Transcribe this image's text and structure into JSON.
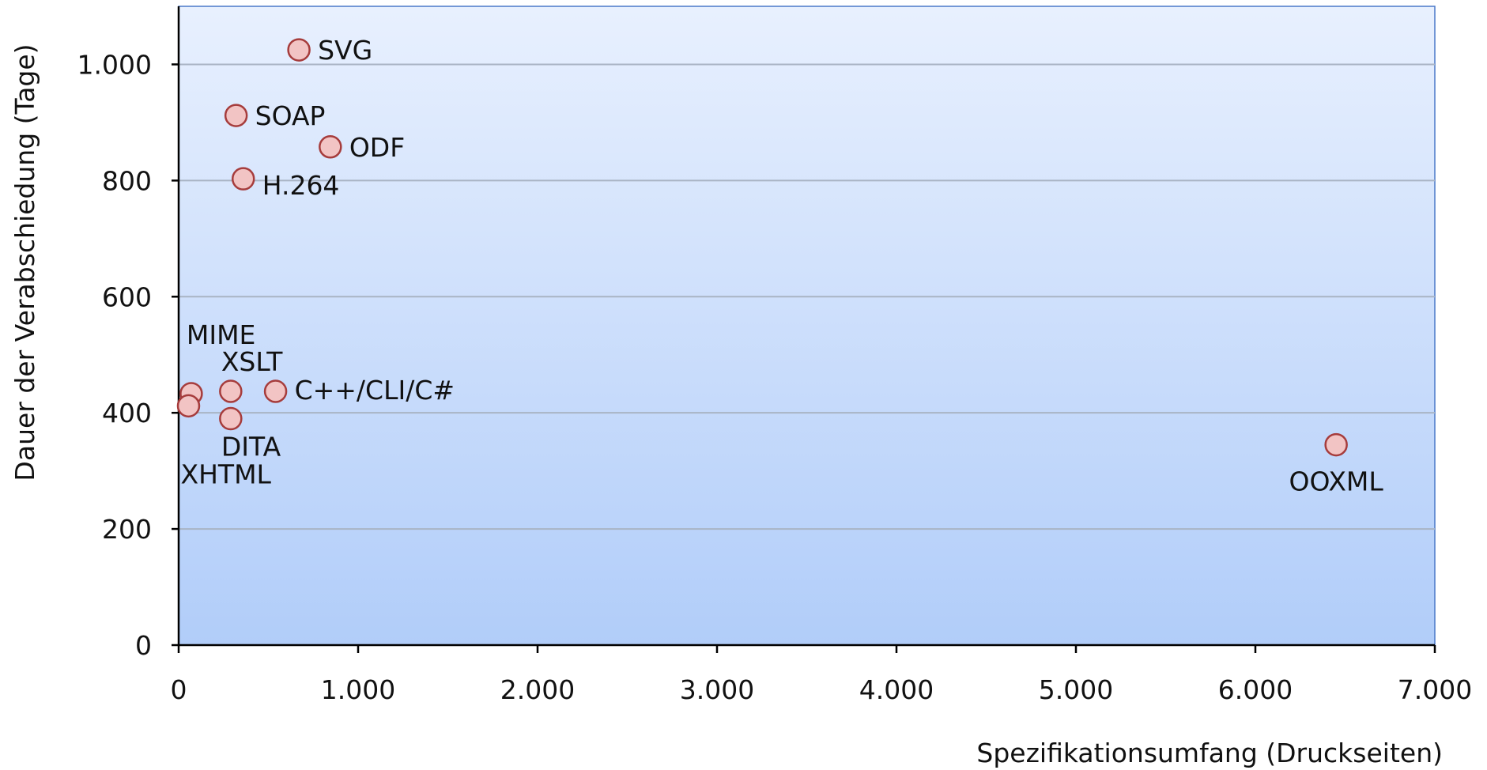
{
  "chart_data": {
    "type": "scatter",
    "xlabel": "Spezifikationsumfang (Druckseiten)",
    "ylabel": "Dauer der Verabschiedung (Tage)",
    "xlim": [
      0,
      7000
    ],
    "ylim": [
      0,
      1100
    ],
    "x_ticks": [
      0,
      1000,
      2000,
      3000,
      4000,
      5000,
      6000,
      7000
    ],
    "x_tick_labels": [
      "0",
      "1.000",
      "2.000",
      "3.000",
      "4.000",
      "5.000",
      "6.000",
      "7.000"
    ],
    "y_ticks": [
      0,
      200,
      400,
      600,
      800,
      1000
    ],
    "y_tick_labels": [
      "0",
      "200",
      "400",
      "600",
      "800",
      "1.000"
    ],
    "grid": "horizontal",
    "background": "gradient-blue",
    "marker_fill": "#f2c4c4",
    "marker_edge": "#a63c3c",
    "points": [
      {
        "label": "SVG",
        "x": 670,
        "y": 1025
      },
      {
        "label": "SOAP",
        "x": 320,
        "y": 912
      },
      {
        "label": "ODF",
        "x": 845,
        "y": 858
      },
      {
        "label": "H.264",
        "x": 360,
        "y": 803
      },
      {
        "label": "MIME",
        "x": 70,
        "y": 433
      },
      {
        "label": "XSLT",
        "x": 290,
        "y": 437
      },
      {
        "label": "C++/CLI/C#",
        "x": 540,
        "y": 437
      },
      {
        "label": "DITA",
        "x": 290,
        "y": 390
      },
      {
        "label": "XHTML",
        "x": 55,
        "y": 412
      },
      {
        "label": "OOXML",
        "x": 6450,
        "y": 345
      }
    ]
  }
}
